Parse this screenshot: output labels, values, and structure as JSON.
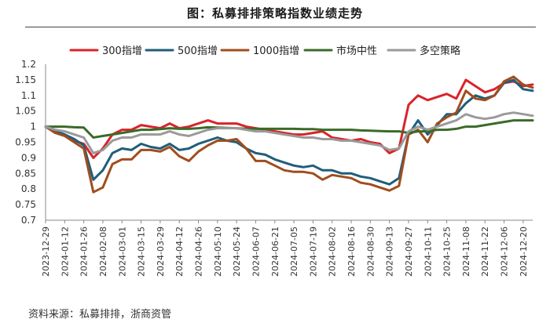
{
  "title": "图：私募排排策略指数业绩走势",
  "source": "资料来源：私募排排，浙商资管",
  "chart_data": {
    "type": "line",
    "title": "图：私募排排策略指数业绩走势",
    "xlabel": "",
    "ylabel": "",
    "ylim": [
      0.7,
      1.2
    ],
    "yticks": [
      0.7,
      0.75,
      0.8,
      0.85,
      0.9,
      0.95,
      1,
      1.05,
      1.1,
      1.15,
      1.2
    ],
    "ytick_labels": [
      "0.7",
      "0.75",
      "0.8",
      "0.85",
      "0.9",
      "0.95",
      "1",
      "1.05",
      "1.1",
      "1.15",
      "1.2"
    ],
    "grid": false,
    "legend_position": "top-center",
    "x": [
      "2023-12-29",
      "2024-01-05",
      "2024-01-12",
      "2024-01-19",
      "2024-01-26",
      "2024-02-02",
      "2024-02-08",
      "2024-02-23",
      "2024-03-01",
      "2024-03-08",
      "2024-03-15",
      "2024-03-22",
      "2024-03-29",
      "2024-04-03",
      "2024-04-12",
      "2024-04-19",
      "2024-04-26",
      "2024-04-30",
      "2024-05-10",
      "2024-05-17",
      "2024-05-24",
      "2024-05-31",
      "2024-06-07",
      "2024-06-14",
      "2024-06-21",
      "2024-06-28",
      "2024-07-05",
      "2024-07-12",
      "2024-07-19",
      "2024-07-26",
      "2024-08-02",
      "2024-08-09",
      "2024-08-16",
      "2024-08-23",
      "2024-08-30",
      "2024-09-06",
      "2024-09-13",
      "2024-09-20",
      "2024-09-27",
      "2024-09-30",
      "2024-10-11",
      "2024-10-18",
      "2024-10-25",
      "2024-11-01",
      "2024-11-08",
      "2024-11-15",
      "2024-11-22",
      "2024-11-29",
      "2024-12-06",
      "2024-12-13",
      "2024-12-20",
      "2024-12-27"
    ],
    "xtick_labels": [
      "2023-12-29",
      "2024-01-12",
      "2024-01-26",
      "2024-02-08",
      "2024-03-01",
      "2024-03-15",
      "2024-03-29",
      "2024-04-12",
      "2024-04-26",
      "2024-05-10",
      "2024-05-24",
      "2024-06-07",
      "2024-06-21",
      "2024-07-05",
      "2024-07-19",
      "2024-08-02",
      "2024-08-16",
      "2024-08-30",
      "2024-09-13",
      "2024-09-27",
      "2024-10-11",
      "2024-10-25",
      "2024-11-08",
      "2024-11-22",
      "2024-12-06",
      "2024-12-20"
    ],
    "series": [
      {
        "name": "300指增",
        "color": "#d9232a",
        "values": [
          1.0,
          0.985,
          0.975,
          0.955,
          0.945,
          0.9,
          0.93,
          0.975,
          0.99,
          0.99,
          1.005,
          1.0,
          0.995,
          1.01,
          0.995,
          1.0,
          1.01,
          1.02,
          1.01,
          1.01,
          1.01,
          1.0,
          0.995,
          0.99,
          0.985,
          0.98,
          0.975,
          0.975,
          0.98,
          0.985,
          0.965,
          0.96,
          0.955,
          0.96,
          0.95,
          0.945,
          0.915,
          0.93,
          1.07,
          1.1,
          1.085,
          1.095,
          1.105,
          1.09,
          1.15,
          1.13,
          1.11,
          1.12,
          1.14,
          1.145,
          1.13,
          1.135
        ]
      },
      {
        "name": "500指增",
        "color": "#1f5e7a",
        "values": [
          1.0,
          0.985,
          0.975,
          0.96,
          0.94,
          0.83,
          0.86,
          0.915,
          0.93,
          0.925,
          0.945,
          0.935,
          0.93,
          0.945,
          0.925,
          0.93,
          0.945,
          0.955,
          0.965,
          0.955,
          0.95,
          0.93,
          0.915,
          0.91,
          0.895,
          0.885,
          0.875,
          0.87,
          0.875,
          0.86,
          0.86,
          0.85,
          0.85,
          0.84,
          0.835,
          0.825,
          0.815,
          0.835,
          0.975,
          1.02,
          0.975,
          1.005,
          1.04,
          1.04,
          1.075,
          1.1,
          1.09,
          1.1,
          1.14,
          1.15,
          1.12,
          1.115
        ]
      },
      {
        "name": "1000指增",
        "color": "#a04d1e",
        "values": [
          1.0,
          0.98,
          0.97,
          0.95,
          0.93,
          0.79,
          0.805,
          0.88,
          0.895,
          0.895,
          0.925,
          0.925,
          0.92,
          0.935,
          0.905,
          0.89,
          0.92,
          0.94,
          0.955,
          0.955,
          0.96,
          0.93,
          0.89,
          0.89,
          0.875,
          0.86,
          0.855,
          0.855,
          0.85,
          0.83,
          0.845,
          0.84,
          0.835,
          0.82,
          0.815,
          0.805,
          0.795,
          0.81,
          0.975,
          0.99,
          0.95,
          1.01,
          1.03,
          1.045,
          1.115,
          1.09,
          1.085,
          1.1,
          1.145,
          1.16,
          1.135,
          1.125
        ]
      },
      {
        "name": "市场中性",
        "color": "#3a6b28",
        "values": [
          1.0,
          1.0,
          1.0,
          0.998,
          0.997,
          0.965,
          0.97,
          0.975,
          0.98,
          0.985,
          0.99,
          0.99,
          0.992,
          0.995,
          0.993,
          0.993,
          0.995,
          0.998,
          0.997,
          0.996,
          0.995,
          0.993,
          0.993,
          0.993,
          0.993,
          0.993,
          0.993,
          0.992,
          0.992,
          0.99,
          0.99,
          0.99,
          0.99,
          0.988,
          0.987,
          0.986,
          0.985,
          0.985,
          0.98,
          0.985,
          0.985,
          0.99,
          0.99,
          0.993,
          1.0,
          1.0,
          1.005,
          1.01,
          1.015,
          1.02,
          1.02,
          1.02
        ]
      },
      {
        "name": "多空策略",
        "color": "#9a9a9a",
        "values": [
          1.0,
          0.99,
          0.985,
          0.975,
          0.965,
          0.915,
          0.925,
          0.955,
          0.965,
          0.965,
          0.975,
          0.975,
          0.975,
          0.985,
          0.975,
          0.97,
          0.98,
          0.99,
          0.995,
          0.995,
          0.995,
          0.99,
          0.985,
          0.985,
          0.98,
          0.975,
          0.97,
          0.965,
          0.965,
          0.96,
          0.96,
          0.955,
          0.955,
          0.95,
          0.945,
          0.94,
          0.925,
          0.93,
          0.985,
          1.0,
          0.99,
          1.0,
          1.01,
          1.02,
          1.04,
          1.03,
          1.025,
          1.03,
          1.04,
          1.045,
          1.04,
          1.035
        ]
      }
    ]
  }
}
